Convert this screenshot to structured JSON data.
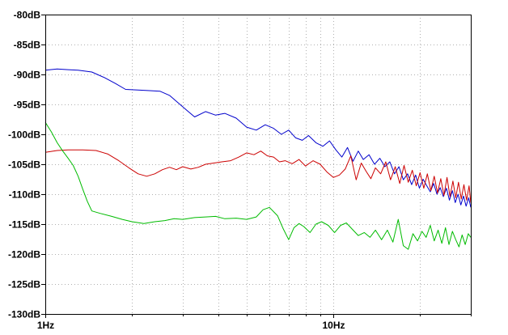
{
  "chart_data": {
    "type": "line",
    "x_scale": "log",
    "xlim": [
      1,
      30
    ],
    "ylim": [
      -130,
      -80
    ],
    "y_unit": "dB",
    "grid": true,
    "x_ticks": [
      {
        "value": 1,
        "label": "1Hz"
      },
      {
        "value": 10,
        "label": "10Hz"
      }
    ],
    "x_minor_ticks": [
      2,
      3,
      4,
      5,
      6,
      7,
      8,
      9,
      20,
      30
    ],
    "y_ticks": [
      {
        "value": -80,
        "label": "-80dB"
      },
      {
        "value": -85,
        "label": "-85dB"
      },
      {
        "value": -90,
        "label": "-90dB"
      },
      {
        "value": -95,
        "label": "-95dB"
      },
      {
        "value": -100,
        "label": "-100dB"
      },
      {
        "value": -105,
        "label": "-105dB"
      },
      {
        "value": -110,
        "label": "-110dB"
      },
      {
        "value": -115,
        "label": "-115dB"
      },
      {
        "value": -120,
        "label": "-120dB"
      },
      {
        "value": -125,
        "label": "-125dB"
      },
      {
        "value": -130,
        "label": "-130dB"
      }
    ],
    "colors": {
      "axis": "#000000",
      "grid": "#b0b0b0",
      "background": "#ffffff"
    },
    "series": [
      {
        "color": "#0000cc",
        "points": [
          [
            1,
            -89.3
          ],
          [
            1.1,
            -89.1
          ],
          [
            1.2,
            -89.2
          ],
          [
            1.3,
            -89.3
          ],
          [
            1.45,
            -89.6
          ],
          [
            1.6,
            -90.5
          ],
          [
            1.75,
            -91.5
          ],
          [
            1.9,
            -92.5
          ],
          [
            2.1,
            -92.6
          ],
          [
            2.3,
            -92.7
          ],
          [
            2.5,
            -92.8
          ],
          [
            2.7,
            -93.5
          ],
          [
            2.9,
            -94.8
          ],
          [
            3.1,
            -96.0
          ],
          [
            3.3,
            -97.1
          ],
          [
            3.6,
            -96.2
          ],
          [
            3.9,
            -96.8
          ],
          [
            4.2,
            -96.5
          ],
          [
            4.6,
            -97.3
          ],
          [
            5.0,
            -98.8
          ],
          [
            5.4,
            -99.3
          ],
          [
            5.8,
            -98.4
          ],
          [
            6.2,
            -99.0
          ],
          [
            6.6,
            -100.0
          ],
          [
            7.0,
            -99.3
          ],
          [
            7.4,
            -100.6
          ],
          [
            7.8,
            -101.0
          ],
          [
            8.2,
            -100.2
          ],
          [
            8.7,
            -101.4
          ],
          [
            9.2,
            -102.0
          ],
          [
            9.7,
            -101.1
          ],
          [
            10.2,
            -102.6
          ],
          [
            10.7,
            -103.8
          ],
          [
            11.2,
            -102.2
          ],
          [
            11.7,
            -104.5
          ],
          [
            12.2,
            -102.8
          ],
          [
            12.7,
            -104.2
          ],
          [
            13.3,
            -103.4
          ],
          [
            13.9,
            -105.0
          ],
          [
            14.5,
            -104.0
          ],
          [
            15.1,
            -105.4
          ],
          [
            15.7,
            -104.6
          ],
          [
            16.3,
            -106.6
          ],
          [
            16.9,
            -105.4
          ],
          [
            17.5,
            -107.6
          ],
          [
            18.1,
            -106.6
          ],
          [
            18.7,
            -108.4
          ],
          [
            19.3,
            -106.8
          ],
          [
            19.9,
            -109.0
          ],
          [
            20.5,
            -107.5
          ],
          [
            21.1,
            -108.6
          ],
          [
            21.7,
            -109.6
          ],
          [
            22.3,
            -108.2
          ],
          [
            22.9,
            -110.0
          ],
          [
            23.5,
            -108.9
          ],
          [
            24.1,
            -110.4
          ],
          [
            24.7,
            -109.0
          ],
          [
            25.3,
            -111.0
          ],
          [
            25.9,
            -109.4
          ],
          [
            26.5,
            -111.4
          ],
          [
            27.1,
            -110.0
          ],
          [
            27.7,
            -111.8
          ],
          [
            28.3,
            -110.3
          ],
          [
            28.9,
            -112.0
          ],
          [
            29.5,
            -110.6
          ],
          [
            30.0,
            -112.2
          ]
        ]
      },
      {
        "color": "#cc0000",
        "points": [
          [
            1,
            -103.0
          ],
          [
            1.1,
            -102.7
          ],
          [
            1.2,
            -102.6
          ],
          [
            1.35,
            -102.6
          ],
          [
            1.5,
            -102.7
          ],
          [
            1.65,
            -103.3
          ],
          [
            1.8,
            -104.4
          ],
          [
            1.95,
            -105.6
          ],
          [
            2.1,
            -106.6
          ],
          [
            2.25,
            -107.0
          ],
          [
            2.4,
            -106.6
          ],
          [
            2.55,
            -105.9
          ],
          [
            2.7,
            -105.5
          ],
          [
            2.85,
            -105.9
          ],
          [
            3.0,
            -105.4
          ],
          [
            3.2,
            -105.8
          ],
          [
            3.4,
            -105.5
          ],
          [
            3.6,
            -105.0
          ],
          [
            3.85,
            -104.8
          ],
          [
            4.1,
            -104.6
          ],
          [
            4.4,
            -104.4
          ],
          [
            4.7,
            -103.8
          ],
          [
            5.0,
            -103.1
          ],
          [
            5.3,
            -103.4
          ],
          [
            5.6,
            -102.8
          ],
          [
            5.9,
            -103.6
          ],
          [
            6.2,
            -103.8
          ],
          [
            6.5,
            -104.6
          ],
          [
            6.8,
            -104.4
          ],
          [
            7.2,
            -104.9
          ],
          [
            7.6,
            -104.2
          ],
          [
            8.0,
            -105.3
          ],
          [
            8.5,
            -104.4
          ],
          [
            9.0,
            -105.0
          ],
          [
            9.5,
            -106.3
          ],
          [
            10.0,
            -107.2
          ],
          [
            10.5,
            -106.8
          ],
          [
            11.0,
            -105.8
          ],
          [
            11.5,
            -103.6
          ],
          [
            12.0,
            -107.6
          ],
          [
            12.5,
            -104.8
          ],
          [
            13.0,
            -106.2
          ],
          [
            13.5,
            -107.4
          ],
          [
            14.0,
            -105.6
          ],
          [
            14.6,
            -106.6
          ],
          [
            15.2,
            -104.6
          ],
          [
            15.8,
            -107.6
          ],
          [
            16.4,
            -105.4
          ],
          [
            17.0,
            -108.2
          ],
          [
            17.6,
            -105.2
          ],
          [
            18.2,
            -108.0
          ],
          [
            18.8,
            -106.0
          ],
          [
            19.4,
            -108.6
          ],
          [
            20.0,
            -106.4
          ],
          [
            20.6,
            -109.0
          ],
          [
            21.2,
            -106.6
          ],
          [
            21.8,
            -109.4
          ],
          [
            22.4,
            -107.0
          ],
          [
            23.0,
            -109.8
          ],
          [
            23.6,
            -107.4
          ],
          [
            24.2,
            -110.2
          ],
          [
            24.8,
            -107.2
          ],
          [
            25.4,
            -110.4
          ],
          [
            26.0,
            -107.8
          ],
          [
            26.6,
            -110.6
          ],
          [
            27.2,
            -108.0
          ],
          [
            27.8,
            -110.8
          ],
          [
            28.4,
            -108.4
          ],
          [
            29.0,
            -111.0
          ],
          [
            29.6,
            -108.6
          ],
          [
            30.0,
            -111.4
          ]
        ]
      },
      {
        "color": "#00bb00",
        "points": [
          [
            1,
            -98.0
          ],
          [
            1.05,
            -99.6
          ],
          [
            1.1,
            -101.4
          ],
          [
            1.15,
            -102.8
          ],
          [
            1.2,
            -104.0
          ],
          [
            1.25,
            -105.2
          ],
          [
            1.3,
            -107.0
          ],
          [
            1.35,
            -109.2
          ],
          [
            1.4,
            -111.2
          ],
          [
            1.45,
            -112.8
          ],
          [
            1.55,
            -113.2
          ],
          [
            1.7,
            -113.7
          ],
          [
            1.85,
            -114.2
          ],
          [
            2.0,
            -114.6
          ],
          [
            2.2,
            -114.9
          ],
          [
            2.4,
            -114.6
          ],
          [
            2.6,
            -114.4
          ],
          [
            2.8,
            -114.1
          ],
          [
            3.0,
            -114.2
          ],
          [
            3.3,
            -113.9
          ],
          [
            3.6,
            -113.8
          ],
          [
            3.9,
            -113.7
          ],
          [
            4.2,
            -114.1
          ],
          [
            4.6,
            -114.0
          ],
          [
            5.0,
            -114.2
          ],
          [
            5.4,
            -113.8
          ],
          [
            5.7,
            -112.6
          ],
          [
            6.0,
            -112.2
          ],
          [
            6.4,
            -113.6
          ],
          [
            6.7,
            -115.8
          ],
          [
            7.0,
            -117.6
          ],
          [
            7.3,
            -115.6
          ],
          [
            7.6,
            -114.9
          ],
          [
            7.9,
            -115.4
          ],
          [
            8.3,
            -116.4
          ],
          [
            8.7,
            -115.0
          ],
          [
            9.1,
            -114.6
          ],
          [
            9.6,
            -115.2
          ],
          [
            10.1,
            -116.4
          ],
          [
            10.6,
            -115.2
          ],
          [
            11.1,
            -114.8
          ],
          [
            11.6,
            -115.8
          ],
          [
            12.2,
            -116.9
          ],
          [
            12.8,
            -116.4
          ],
          [
            13.4,
            -117.2
          ],
          [
            14.0,
            -116.0
          ],
          [
            14.7,
            -117.6
          ],
          [
            15.4,
            -116.0
          ],
          [
            16.1,
            -118.0
          ],
          [
            16.8,
            -114.2
          ],
          [
            17.5,
            -118.6
          ],
          [
            18.2,
            -119.2
          ],
          [
            18.9,
            -116.6
          ],
          [
            19.6,
            -117.8
          ],
          [
            20.3,
            -116.2
          ],
          [
            21.0,
            -117.2
          ],
          [
            21.7,
            -115.2
          ],
          [
            22.4,
            -117.8
          ],
          [
            23.1,
            -116.0
          ],
          [
            23.8,
            -118.2
          ],
          [
            24.5,
            -115.6
          ],
          [
            25.2,
            -118.4
          ],
          [
            25.9,
            -116.2
          ],
          [
            26.6,
            -117.6
          ],
          [
            27.3,
            -118.8
          ],
          [
            28.0,
            -116.8
          ],
          [
            28.7,
            -118.4
          ],
          [
            29.4,
            -116.6
          ],
          [
            30.0,
            -117.2
          ]
        ]
      }
    ]
  }
}
